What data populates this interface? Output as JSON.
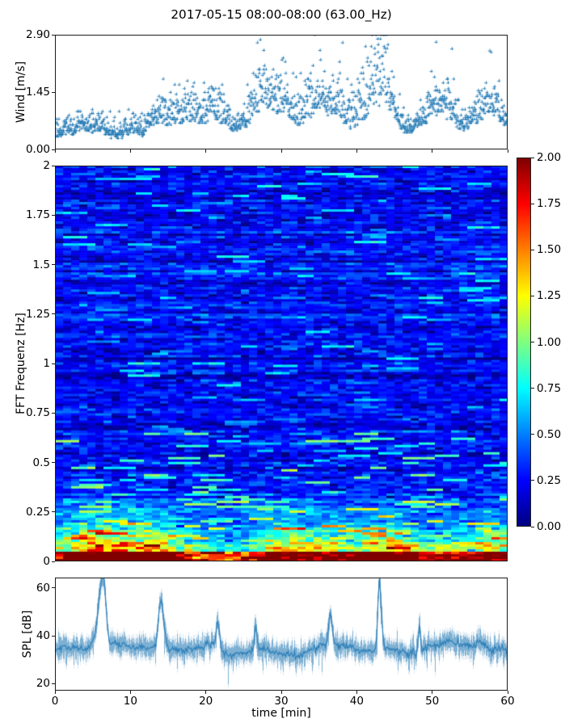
{
  "title": "2017-05-15 08:00-08:00 (63.00_Hz)",
  "colors": {
    "series": "#1f77b4",
    "axis": "#1c1c1c",
    "background": "#ffffff"
  },
  "chart_data": [
    {
      "id": "wind",
      "type": "scatter",
      "ylabel": "Wind [m/s]",
      "xlim": [
        0,
        60
      ],
      "ylim": [
        0,
        2.9
      ],
      "yticks": [
        "0.00",
        "1.45",
        "2.90"
      ],
      "ytick_values": [
        0,
        1.45,
        2.9
      ],
      "marker": "plus",
      "color": "#1f77b4",
      "value_quantum": 0.0483,
      "typical_range": [
        0.05,
        1.2
      ],
      "gust_peaks": [
        {
          "t": 27.2,
          "v": 2.78
        },
        {
          "t": 34.4,
          "v": 2.9
        },
        {
          "t": 43.1,
          "v": 2.8
        },
        {
          "t": 50.5,
          "v": 2.72
        },
        {
          "t": 52.6,
          "v": 2.55
        },
        {
          "t": 57.6,
          "v": 2.5
        }
      ],
      "gen": {
        "seed": 1234,
        "n": 1500,
        "base_low": 0.1,
        "base_high": 0.45,
        "noise": 0.22,
        "bumps": [
          [
            16,
            3,
            0.3
          ],
          [
            21,
            2,
            0.28
          ],
          [
            27.3,
            1.6,
            0.5
          ],
          [
            30,
            2,
            0.4
          ],
          [
            34.5,
            2.2,
            0.42
          ],
          [
            38,
            2,
            0.32
          ],
          [
            41.8,
            2,
            0.55
          ],
          [
            44,
            1.5,
            0.42
          ],
          [
            50.5,
            1.5,
            0.38
          ],
          [
            52.5,
            1,
            0.28
          ],
          [
            57.5,
            2,
            0.36
          ]
        ]
      }
    },
    {
      "id": "spectrogram",
      "type": "heatmap",
      "ylabel": "FFT Frequenz [Hz]",
      "xlim": [
        0,
        60
      ],
      "ylim": [
        0,
        2
      ],
      "yticks": [
        "0",
        "0.25",
        "0.5",
        "0.75",
        "1",
        "1.25",
        "1.5",
        "1.75",
        "2"
      ],
      "ytick_values": [
        0,
        0.25,
        0.5,
        0.75,
        1,
        1.25,
        1.5,
        1.75,
        2
      ],
      "colormap": "jet",
      "clim": [
        0,
        2
      ],
      "colorbar": {
        "ticks": [
          "0.00",
          "0.25",
          "0.50",
          "0.75",
          "1.00",
          "1.25",
          "1.50",
          "1.75",
          "2.00"
        ],
        "tick_values": [
          0,
          0.25,
          0.5,
          0.75,
          1,
          1.25,
          1.5,
          1.75,
          2
        ]
      },
      "freq_mean_profile": [
        [
          0.01,
          1.95
        ],
        [
          0.05,
          1.45
        ],
        [
          0.1,
          1.05
        ],
        [
          0.2,
          0.65
        ],
        [
          0.3,
          0.45
        ],
        [
          0.45,
          0.35
        ],
        [
          0.75,
          0.3
        ],
        [
          1.25,
          0.28
        ],
        [
          2.0,
          0.29
        ]
      ],
      "gen": {
        "seed": 77,
        "cols": 56,
        "rows": 163,
        "row_base": 0.24,
        "row_sigma": 0.07,
        "cell_sigma": 0.105,
        "streak_f_split": 0.65,
        "streak_prob_low": 0.05,
        "streak_prob_high": 0.021,
        "streak_val_low": [
          0.5,
          1.05
        ],
        "streak_val_high": [
          0.45,
          0.8
        ],
        "hot_freq": 0.45,
        "hot_power": 2.1,
        "hot_gain": [
          0.45,
          1.5
        ],
        "bottom_freq": 0.05,
        "bottom_add": [
          0.6,
          0.8
        ],
        "col_mod_base": 0.16,
        "col_mod_bumps": [
          [
            4,
            3.5,
            0.55
          ],
          [
            9,
            4,
            0.6
          ],
          [
            14.5,
            3,
            0.5
          ],
          [
            30.5,
            3.5,
            0.5
          ],
          [
            36,
            3,
            0.38
          ],
          [
            44,
            3.5,
            0.6
          ],
          [
            52,
            2.5,
            0.3
          ],
          [
            58,
            2.5,
            0.45
          ]
        ]
      }
    },
    {
      "id": "spl",
      "type": "line",
      "ylabel": "SPL [dB]",
      "xlabel": "time [min]",
      "xlim": [
        0,
        60
      ],
      "ylim": [
        17,
        64.4
      ],
      "xticks": [
        0,
        10,
        20,
        30,
        40,
        50,
        60
      ],
      "yticks": [
        20,
        40,
        60
      ],
      "color": "#1f77b4",
      "mean_db": 34.5,
      "noise_db": 2.1,
      "peaks": [
        {
          "t": 6.4,
          "db": 63,
          "rise": 0.9,
          "fall": 0.5
        },
        {
          "t": 14.0,
          "db": 55,
          "rise": 0.4,
          "fall": 0.55
        },
        {
          "t": 21.6,
          "db": 46,
          "rise": 0.25,
          "fall": 0.3
        },
        {
          "t": 26.6,
          "db": 44,
          "rise": 0.2,
          "fall": 0.25
        },
        {
          "t": 36.5,
          "db": 48,
          "rise": 0.25,
          "fall": 0.3
        },
        {
          "t": 43.0,
          "db": 64,
          "rise": 0.3,
          "fall": 0.4
        },
        {
          "t": 48.3,
          "db": 45,
          "rise": 0.2,
          "fall": 0.2
        }
      ],
      "slow_bumps": [
        [
          9,
          2,
          2
        ],
        [
          36,
          4,
          2.5
        ],
        [
          52.5,
          3,
          3.5
        ],
        [
          57,
          2,
          2
        ]
      ],
      "slow_dips": [
        [
          24,
          2,
          -2
        ],
        [
          32.5,
          2.5,
          -3.5
        ],
        [
          47,
          1.5,
          -1.5
        ]
      ],
      "gen": {
        "seed": 555,
        "n": 5600,
        "drop_prob": 0.006,
        "drop_depth": [
          4,
          9
        ]
      }
    }
  ]
}
